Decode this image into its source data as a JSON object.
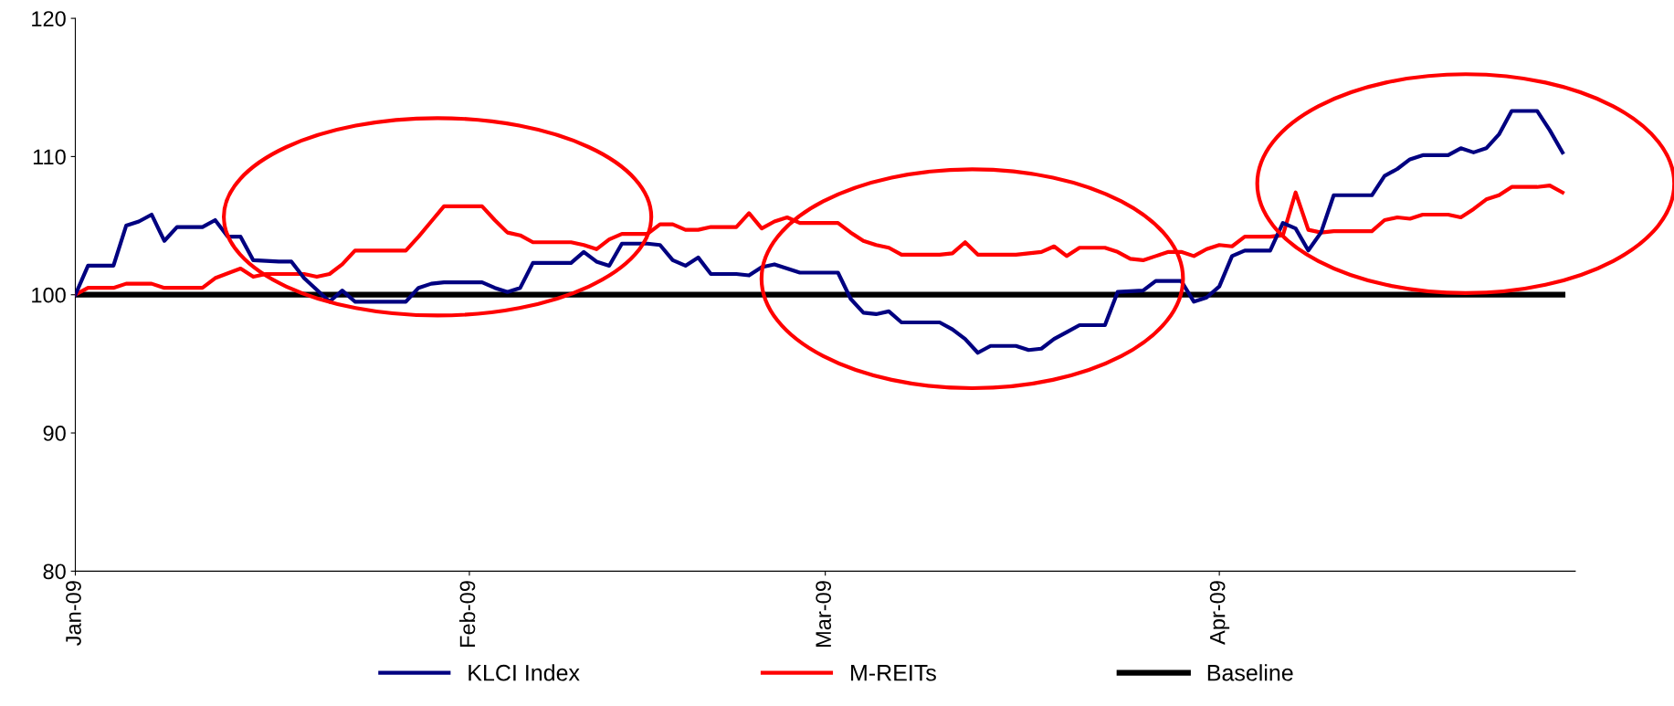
{
  "chart_data": {
    "type": "line",
    "xlim": [
      "2009-01-01",
      "2009-04-29"
    ],
    "ylim": [
      80,
      120
    ],
    "yticks": [
      80,
      90,
      100,
      110,
      120
    ],
    "xticks": [
      {
        "value": "2009-01-01",
        "label": "Jan-09"
      },
      {
        "value": "2009-02-01",
        "label": "Feb-09"
      },
      {
        "value": "2009-03-01",
        "label": "Mar-09"
      },
      {
        "value": "2009-04-01",
        "label": "Apr-09"
      }
    ],
    "grid": false,
    "legend": "bottom",
    "marker": "none",
    "line_style": "solid",
    "series": [
      {
        "name": "KLCI Index",
        "color": "#000080",
        "x": [
          "2009-01-01",
          "2009-01-02",
          "2009-01-04",
          "2009-01-05",
          "2009-01-06",
          "2009-01-07",
          "2009-01-08",
          "2009-01-09",
          "2009-01-11",
          "2009-01-12",
          "2009-01-13",
          "2009-01-14",
          "2009-01-15",
          "2009-01-17",
          "2009-01-18",
          "2009-01-19",
          "2009-01-21",
          "2009-01-22",
          "2009-01-23",
          "2009-01-27",
          "2009-01-28",
          "2009-01-29",
          "2009-01-30",
          "2009-02-02",
          "2009-02-03",
          "2009-02-04",
          "2009-02-05",
          "2009-02-06",
          "2009-02-09",
          "2009-02-10",
          "2009-02-11",
          "2009-02-12",
          "2009-02-13",
          "2009-02-15",
          "2009-02-16",
          "2009-02-17",
          "2009-02-18",
          "2009-02-19",
          "2009-02-20",
          "2009-02-22",
          "2009-02-23",
          "2009-02-24",
          "2009-02-25",
          "2009-02-26",
          "2009-02-27",
          "2009-03-02",
          "2009-03-03",
          "2009-03-04",
          "2009-03-05",
          "2009-03-06",
          "2009-03-07",
          "2009-03-10",
          "2009-03-11",
          "2009-03-12",
          "2009-03-13",
          "2009-03-14",
          "2009-03-16",
          "2009-03-17",
          "2009-03-18",
          "2009-03-19",
          "2009-03-20",
          "2009-03-21",
          "2009-03-23",
          "2009-03-24",
          "2009-03-26",
          "2009-03-27",
          "2009-03-29",
          "2009-03-30",
          "2009-03-31",
          "2009-04-01",
          "2009-04-02",
          "2009-04-03",
          "2009-04-05",
          "2009-04-06",
          "2009-04-07",
          "2009-04-08",
          "2009-04-09",
          "2009-04-10",
          "2009-04-13",
          "2009-04-14",
          "2009-04-15",
          "2009-04-16",
          "2009-04-17",
          "2009-04-19",
          "2009-04-20",
          "2009-04-21",
          "2009-04-22",
          "2009-04-23",
          "2009-04-24",
          "2009-04-26",
          "2009-04-27",
          "2009-04-28"
        ],
        "values": [
          100,
          102.1,
          102.1,
          105.0,
          105.3,
          105.8,
          103.9,
          104.9,
          104.9,
          105.4,
          104.2,
          104.2,
          102.5,
          102.4,
          102.4,
          101.2,
          99.5,
          100.3,
          99.5,
          99.5,
          100.5,
          100.8,
          100.9,
          100.9,
          100.5,
          100.2,
          100.5,
          102.3,
          102.3,
          103.1,
          102.4,
          102.1,
          103.7,
          103.7,
          103.6,
          102.5,
          102.1,
          102.7,
          101.5,
          101.5,
          101.4,
          102.0,
          102.2,
          101.9,
          101.6,
          101.6,
          99.7,
          98.7,
          98.6,
          98.8,
          98.0,
          98.0,
          97.5,
          96.8,
          95.8,
          96.3,
          96.3,
          96.0,
          96.1,
          96.8,
          97.3,
          97.8,
          97.8,
          100.2,
          100.3,
          101.0,
          101.0,
          99.5,
          99.8,
          100.6,
          102.8,
          103.2,
          103.2,
          105.2,
          104.8,
          103.2,
          104.5,
          107.2,
          107.2,
          108.6,
          109.1,
          109.8,
          110.1,
          110.1,
          110.6,
          110.3,
          110.6,
          111.6,
          113.3,
          113.3,
          111.9,
          110.3
        ]
      },
      {
        "name": "M-REITs",
        "color": "#ff0000",
        "x": [
          "2009-01-01",
          "2009-01-02",
          "2009-01-04",
          "2009-01-05",
          "2009-01-07",
          "2009-01-08",
          "2009-01-11",
          "2009-01-12",
          "2009-01-14",
          "2009-01-15",
          "2009-01-16",
          "2009-01-19",
          "2009-01-20",
          "2009-01-21",
          "2009-01-22",
          "2009-01-23",
          "2009-01-27",
          "2009-01-28",
          "2009-01-29",
          "2009-01-30",
          "2009-02-02",
          "2009-02-03",
          "2009-02-04",
          "2009-02-05",
          "2009-02-06",
          "2009-02-09",
          "2009-02-10",
          "2009-02-11",
          "2009-02-12",
          "2009-02-13",
          "2009-02-15",
          "2009-02-16",
          "2009-02-17",
          "2009-02-18",
          "2009-02-19",
          "2009-02-20",
          "2009-02-22",
          "2009-02-23",
          "2009-02-24",
          "2009-02-25",
          "2009-02-26",
          "2009-02-27",
          "2009-03-02",
          "2009-03-03",
          "2009-03-04",
          "2009-03-05",
          "2009-03-06",
          "2009-03-07",
          "2009-03-10",
          "2009-03-11",
          "2009-03-12",
          "2009-03-13",
          "2009-03-16",
          "2009-03-17",
          "2009-03-18",
          "2009-03-19",
          "2009-03-20",
          "2009-03-21",
          "2009-03-23",
          "2009-03-24",
          "2009-03-25",
          "2009-03-26",
          "2009-03-27",
          "2009-03-28",
          "2009-03-29",
          "2009-03-30",
          "2009-03-31",
          "2009-04-01",
          "2009-04-02",
          "2009-04-03",
          "2009-04-05",
          "2009-04-06",
          "2009-04-07",
          "2009-04-08",
          "2009-04-09",
          "2009-04-10",
          "2009-04-13",
          "2009-04-14",
          "2009-04-15",
          "2009-04-16",
          "2009-04-17",
          "2009-04-19",
          "2009-04-20",
          "2009-04-21",
          "2009-04-22",
          "2009-04-23",
          "2009-04-24",
          "2009-04-26",
          "2009-04-27",
          "2009-04-28"
        ],
        "values": [
          100,
          100.5,
          100.5,
          100.8,
          100.8,
          100.5,
          100.5,
          101.2,
          101.9,
          101.3,
          101.5,
          101.5,
          101.3,
          101.5,
          102.2,
          103.2,
          103.2,
          104.2,
          105.3,
          106.4,
          106.4,
          105.4,
          104.5,
          104.3,
          103.8,
          103.8,
          103.6,
          103.3,
          104.0,
          104.4,
          104.4,
          105.1,
          105.1,
          104.7,
          104.7,
          104.9,
          104.9,
          105.9,
          104.8,
          105.3,
          105.6,
          105.2,
          105.2,
          104.5,
          103.9,
          103.6,
          103.4,
          102.9,
          102.9,
          103.0,
          103.8,
          102.9,
          102.9,
          103.0,
          103.1,
          103.5,
          102.8,
          103.4,
          103.4,
          103.1,
          102.6,
          102.5,
          102.8,
          103.1,
          103.1,
          102.8,
          103.3,
          103.6,
          103.5,
          104.2,
          104.2,
          104.3,
          107.4,
          104.7,
          104.5,
          104.6,
          104.6,
          105.4,
          105.6,
          105.5,
          105.8,
          105.8,
          105.6,
          106.2,
          106.9,
          107.2,
          107.8,
          107.8,
          107.9,
          107.4
        ]
      },
      {
        "name": "Baseline",
        "color": "#000000",
        "x": [
          "2009-01-01",
          "2009-04-28"
        ],
        "values": [
          100,
          100
        ]
      }
    ]
  }
}
